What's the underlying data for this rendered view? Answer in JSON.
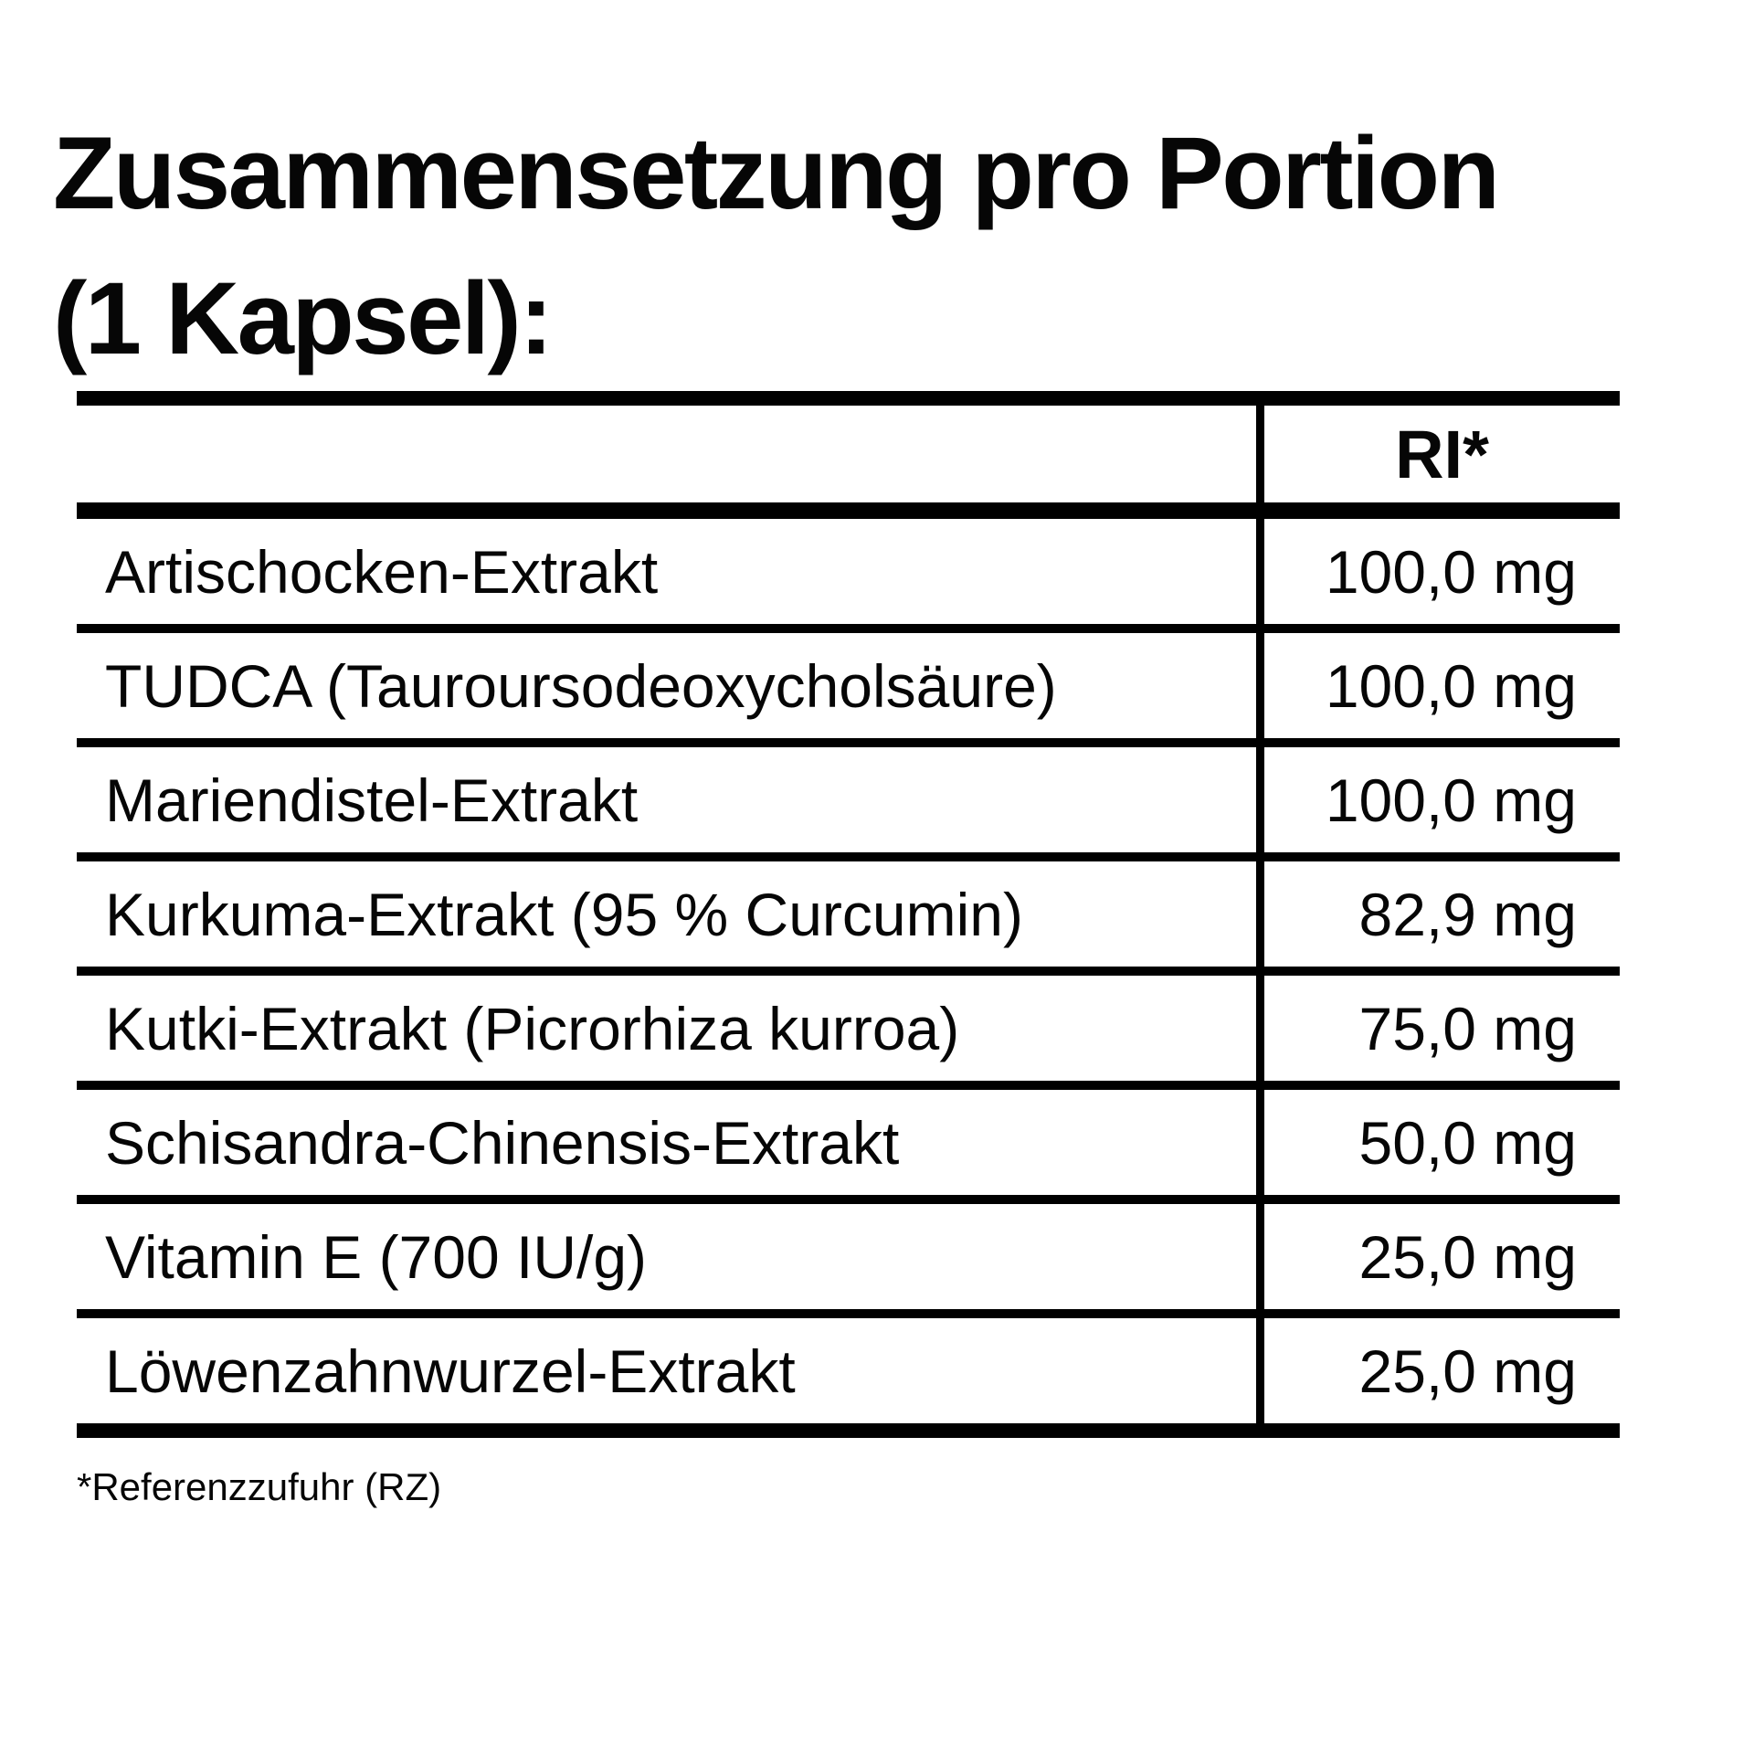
{
  "colors": {
    "background": "#ffffff",
    "text": "#060606",
    "line": "#000000"
  },
  "title": {
    "line1": "Zusammensetzung pro Portion",
    "line2": "(1 Kapsel):"
  },
  "table": {
    "header": {
      "ingredient_col": "",
      "amount_col": "RI*"
    },
    "rows": [
      {
        "label": "Artischocken-Extrakt",
        "value": "100,0 mg"
      },
      {
        "label": "TUDCA (Tauroursodeoxycholsäure)",
        "value": "100,0 mg"
      },
      {
        "label": "Mariendistel-Extrakt",
        "value": "100,0 mg"
      },
      {
        "label": "Kurkuma-Extrakt (95 % Curcumin)",
        "value": "82,9 mg"
      },
      {
        "label": "Kutki-Extrakt (Picrorhiza kurroa)",
        "value": "75,0 mg"
      },
      {
        "label": "Schisandra-Chinensis-Extrakt",
        "value": "50,0 mg"
      },
      {
        "label": "Vitamin E (700 IU/g)",
        "value": "25,0 mg"
      },
      {
        "label": "Löwenzahnwurzel-Extrakt",
        "value": "25,0 mg"
      }
    ]
  },
  "footnote": "*Referenzzufuhr (RZ)"
}
